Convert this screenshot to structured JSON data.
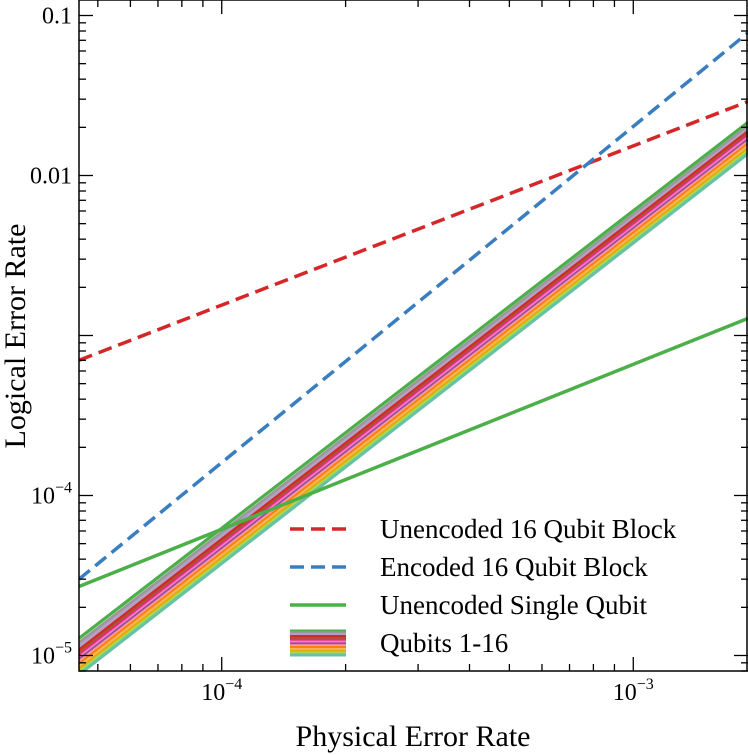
{
  "chart_data": {
    "type": "line",
    "xlabel": "Physical Error Rate",
    "ylabel": "Logical Error Rate",
    "xscale": "log",
    "yscale": "log",
    "xlim": [
      4.5e-05,
      0.0019
    ],
    "ylim": [
      8e-06,
      0.125
    ],
    "grid": false,
    "legend_position": "lower-right",
    "x_ticks": [
      {
        "value": 0.0001,
        "base": "10",
        "exp": "−4"
      },
      {
        "value": 0.001,
        "base": "10",
        "exp": "−3"
      }
    ],
    "y_ticks": [
      {
        "value": 0.1,
        "text": "0.1"
      },
      {
        "value": 0.01,
        "text": "0.01"
      },
      {
        "value": 0.0001,
        "base": "10",
        "exp": "−4"
      },
      {
        "value": 1e-05,
        "base": "10",
        "exp": "−5"
      }
    ],
    "series": [
      {
        "name": "Unencoded 16 Qubit Block",
        "color": "#d62728",
        "dash": "dashed",
        "x": [
          4.5e-05,
          0.0019
        ],
        "y": [
          0.0007,
          0.029
        ]
      },
      {
        "name": "Encoded 16 Qubit Block",
        "color": "#3a7ebf",
        "dash": "dashed",
        "x": [
          4.5e-05,
          0.0019
        ],
        "y": [
          3e-05,
          0.078
        ]
      },
      {
        "name": "Unencoded Single Qubit",
        "color": "#4daf4a",
        "dash": "solid",
        "x": [
          4.5e-05,
          0.0019
        ],
        "y": [
          2.7e-05,
          0.00128
        ]
      },
      {
        "name": "Qubits 1-16",
        "group": true,
        "x": [
          4.5e-05,
          0.0019
        ],
        "members": [
          {
            "color": "#4daf4a",
            "y": [
              1.28e-05,
              0.0215
            ]
          },
          {
            "color": "#999999",
            "y": [
              1.2e-05,
              0.0203
            ]
          },
          {
            "color": "#b5a0c8",
            "y": [
              1.14e-05,
              0.0195
            ]
          },
          {
            "color": "#d62728",
            "y": [
              1.08e-05,
              0.0188
            ]
          },
          {
            "color": "#a65628",
            "y": [
              1.04e-05,
              0.0182
            ]
          },
          {
            "color": "#e7298a",
            "y": [
              1e-05,
              0.0177
            ]
          },
          {
            "color": "#f781bf",
            "y": [
              9.7e-06,
              0.0172
            ]
          },
          {
            "color": "#984ea3",
            "y": [
              9.4e-06,
              0.0167
            ]
          },
          {
            "color": "#fb9a99",
            "y": [
              9.1e-06,
              0.0162
            ]
          },
          {
            "color": "#ff7f00",
            "y": [
              8.8e-06,
              0.0157
            ]
          },
          {
            "color": "#fdb462",
            "y": [
              8.5e-06,
              0.0152
            ]
          },
          {
            "color": "#e6ab02",
            "y": [
              8.2e-06,
              0.0147
            ]
          },
          {
            "color": "#a6d854",
            "y": [
              7.9e-06,
              0.0142
            ]
          },
          {
            "color": "#66c2a5",
            "y": [
              7.6e-06,
              0.0137
            ]
          }
        ]
      }
    ]
  }
}
